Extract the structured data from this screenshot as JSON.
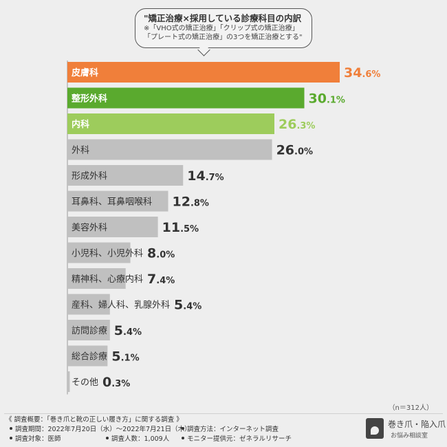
{
  "chart_data": {
    "type": "bar",
    "orientation": "horizontal",
    "title_lines": [
      "\"矯正治療×採用している診療科目の内訳",
      "※「VHO式の矯正治療」「クリップ式の矯正治療」",
      "「プレート式の矯正治療」の3つを矯正治療とする\""
    ],
    "categories": [
      "皮膚科",
      "整形外科",
      "内科",
      "外科",
      "形成外科",
      "耳鼻科、耳鼻咽喉科",
      "美容外科",
      "小児科、小児外科",
      "精神科、心療内科",
      "産科、婦人科、乳腺外科",
      "訪問診療",
      "総合診療",
      "その他"
    ],
    "values": [
      34.6,
      30.1,
      26.3,
      26.0,
      14.7,
      12.8,
      11.5,
      8.0,
      7.4,
      5.4,
      5.4,
      5.1,
      0.3
    ],
    "unit": "%",
    "xlim": [
      0,
      34.6
    ],
    "highlight_colors": [
      "#f07f3a",
      "#5aaa2e",
      "#9dcc5c"
    ],
    "default_color": "#c0c0c0",
    "sample_size": "（n＝312人）"
  },
  "footer": {
    "title": "《 調査概要：「巻き爪と靴の正しい履き方」に関する調査 》",
    "period": "調査期間：2022年7月20日（水）〜2022年7月21日（木）",
    "method": "調査方法：インターネット調査",
    "target": "調査対象：医師",
    "count": "調査人数：1,009人",
    "provider": "モニター提供元：ゼネラルリサーチ"
  },
  "logo": {
    "line1": "巻き爪・陥入爪",
    "line2": "お悩み相談室"
  }
}
